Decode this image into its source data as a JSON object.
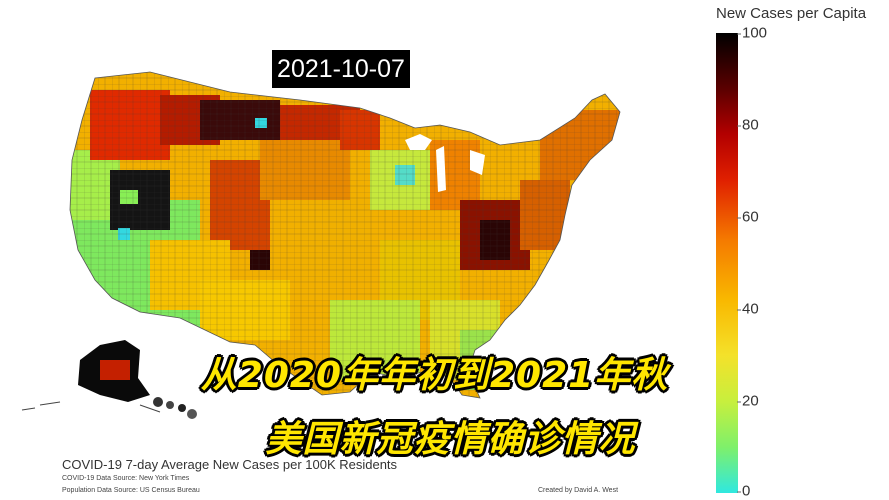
{
  "date_label": "2021-10-07",
  "legend": {
    "title": "New Cases per Capita",
    "ticks": [
      "100",
      "80",
      "60",
      "40",
      "20",
      "0"
    ],
    "colors": {
      "high": "#000000",
      "upper": "#b30000",
      "mid": "#f57a00",
      "low_mid": "#f9b800",
      "low": "#c8ef3d",
      "zero": "#2fe8e0"
    }
  },
  "caption": {
    "line1": "从2020年年初到2021年秋",
    "line2": "美国新冠疫情确诊情况"
  },
  "source": {
    "title": "COVID-19 7-day Average New Cases per 100K Residents",
    "line1": "COVID-19 Data Source: New York Times",
    "line2": "Population Data Source: US Census Bureau",
    "credit": "Created by David A. West"
  }
}
